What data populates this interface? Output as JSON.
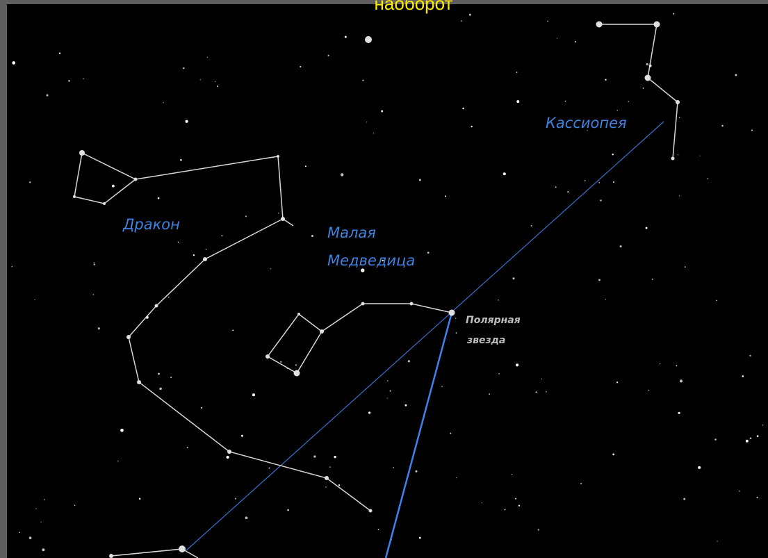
{
  "caption": "наоборот",
  "labels": {
    "cassiopeia": "Кассиопея",
    "draco": "Дракон",
    "ursa_minor": [
      "Малая",
      "Медведица"
    ],
    "polaris": [
      "Полярная",
      "звезда"
    ]
  }
}
